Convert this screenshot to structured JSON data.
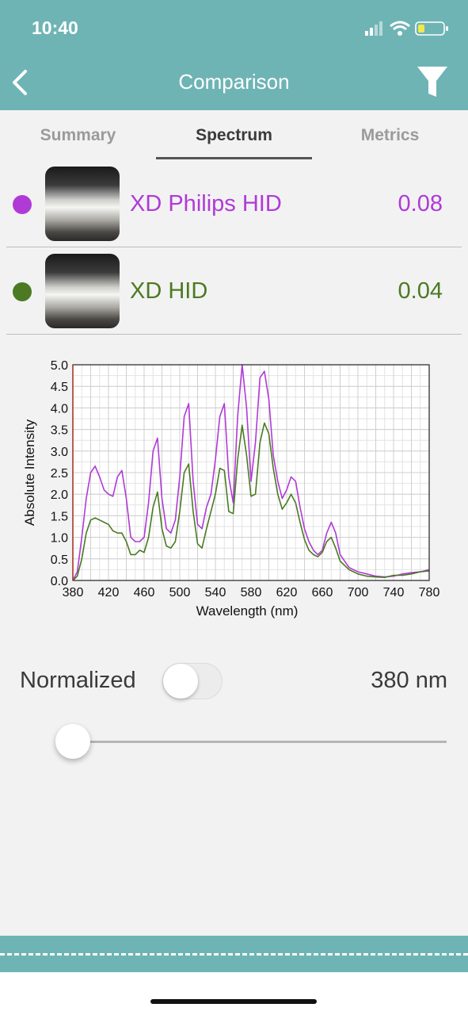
{
  "status_bar": {
    "time": "10:40"
  },
  "nav": {
    "title": "Comparison"
  },
  "tabs": [
    {
      "label": "Summary",
      "active": false
    },
    {
      "label": "Spectrum",
      "active": true
    },
    {
      "label": "Metrics",
      "active": false
    }
  ],
  "items": [
    {
      "name": "XD Philips HID",
      "value": "0.08",
      "color": "#b03ad6"
    },
    {
      "name": "XD HID",
      "value": "0.04",
      "color": "#4b7a22"
    }
  ],
  "chart_data": {
    "type": "line",
    "xlabel": "Wavelength (nm)",
    "ylabel": "Absolute Intensity",
    "xlim": [
      380,
      780
    ],
    "ylim": [
      0,
      5.0
    ],
    "xticks": [
      "380",
      "420",
      "460",
      "500",
      "540",
      "580",
      "620",
      "660",
      "700",
      "740",
      "780"
    ],
    "yticks": [
      "0.0",
      "0.5",
      "1.0",
      "1.5",
      "2.0",
      "2.5",
      "3.0",
      "3.5",
      "4.0",
      "4.5",
      "5.0"
    ],
    "grid": true,
    "series": [
      {
        "name": "XD Philips HID",
        "color": "#b03ad6",
        "x": [
          380,
          385,
          390,
          395,
          400,
          405,
          410,
          415,
          420,
          425,
          430,
          435,
          440,
          445,
          450,
          455,
          460,
          465,
          470,
          475,
          480,
          485,
          490,
          495,
          500,
          505,
          510,
          515,
          520,
          525,
          530,
          535,
          540,
          545,
          550,
          555,
          560,
          565,
          570,
          575,
          580,
          585,
          590,
          595,
          600,
          605,
          610,
          615,
          620,
          625,
          630,
          635,
          640,
          645,
          650,
          655,
          660,
          665,
          670,
          675,
          680,
          690,
          700,
          710,
          720,
          730,
          740,
          750,
          760,
          770,
          780
        ],
        "y": [
          0.0,
          0.2,
          1.0,
          1.9,
          2.5,
          2.65,
          2.4,
          2.1,
          2.0,
          1.95,
          2.4,
          2.55,
          1.9,
          1.0,
          0.9,
          0.9,
          1.0,
          1.8,
          3.0,
          3.3,
          1.9,
          1.2,
          1.1,
          1.4,
          2.4,
          3.8,
          4.1,
          2.3,
          1.3,
          1.2,
          1.7,
          2.0,
          2.8,
          3.8,
          4.1,
          2.4,
          1.8,
          3.8,
          5.0,
          4.0,
          2.3,
          3.2,
          4.7,
          4.85,
          4.2,
          2.9,
          2.3,
          1.9,
          2.1,
          2.4,
          2.3,
          1.7,
          1.2,
          0.9,
          0.7,
          0.6,
          0.7,
          1.1,
          1.35,
          1.1,
          0.6,
          0.3,
          0.2,
          0.15,
          0.1,
          0.08,
          0.1,
          0.15,
          0.18,
          0.2,
          0.25
        ]
      },
      {
        "name": "XD HID",
        "color": "#4b7a22",
        "x": [
          380,
          385,
          390,
          395,
          400,
          405,
          410,
          415,
          420,
          425,
          430,
          435,
          440,
          445,
          450,
          455,
          460,
          465,
          470,
          475,
          480,
          485,
          490,
          495,
          500,
          505,
          510,
          515,
          520,
          525,
          530,
          535,
          540,
          545,
          550,
          555,
          560,
          565,
          570,
          575,
          580,
          585,
          590,
          595,
          600,
          605,
          610,
          615,
          620,
          625,
          630,
          635,
          640,
          645,
          650,
          655,
          660,
          665,
          670,
          675,
          680,
          690,
          700,
          710,
          720,
          730,
          740,
          750,
          760,
          770,
          780
        ],
        "y": [
          0.0,
          0.1,
          0.5,
          1.1,
          1.4,
          1.45,
          1.4,
          1.35,
          1.3,
          1.15,
          1.1,
          1.1,
          0.9,
          0.6,
          0.6,
          0.7,
          0.65,
          1.0,
          1.7,
          2.05,
          1.2,
          0.8,
          0.75,
          0.9,
          1.6,
          2.5,
          2.7,
          1.6,
          0.85,
          0.75,
          1.2,
          1.6,
          2.0,
          2.6,
          2.55,
          1.6,
          1.55,
          2.8,
          3.6,
          2.9,
          1.95,
          2.0,
          3.2,
          3.65,
          3.4,
          2.6,
          2.0,
          1.65,
          1.8,
          2.0,
          1.8,
          1.35,
          0.95,
          0.7,
          0.6,
          0.55,
          0.65,
          0.9,
          1.0,
          0.75,
          0.45,
          0.25,
          0.15,
          0.1,
          0.08,
          0.07,
          0.12,
          0.12,
          0.15,
          0.2,
          0.22
        ]
      }
    ]
  },
  "controls": {
    "normalized_label": "Normalized",
    "normalized_on": false,
    "wavelength_value": "380 nm",
    "slider_fraction": 0.0
  }
}
